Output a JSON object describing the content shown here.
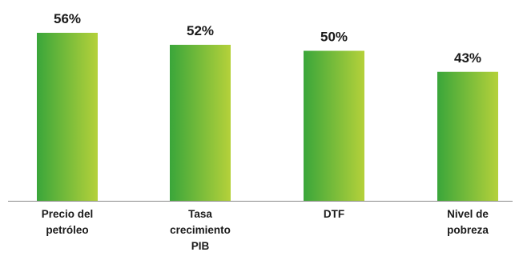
{
  "chart_data": {
    "type": "bar",
    "title": "",
    "xlabel": "",
    "ylabel": "",
    "ylim": [
      0,
      60
    ],
    "grid": false,
    "legend": "none",
    "categories": [
      [
        "Precio del",
        "petróleo"
      ],
      [
        "Tasa",
        "crecimiento",
        "PIB"
      ],
      [
        "DTF"
      ],
      [
        "Nivel de",
        "pobreza"
      ]
    ],
    "values": [
      56,
      52,
      50,
      43
    ],
    "data_labels": [
      "56%",
      "52%",
      "50%",
      "43%"
    ],
    "colors": {
      "bar_dark": "#3aa63a",
      "bar_light": "#b5d13a",
      "axis": "#8a8a8a"
    }
  }
}
